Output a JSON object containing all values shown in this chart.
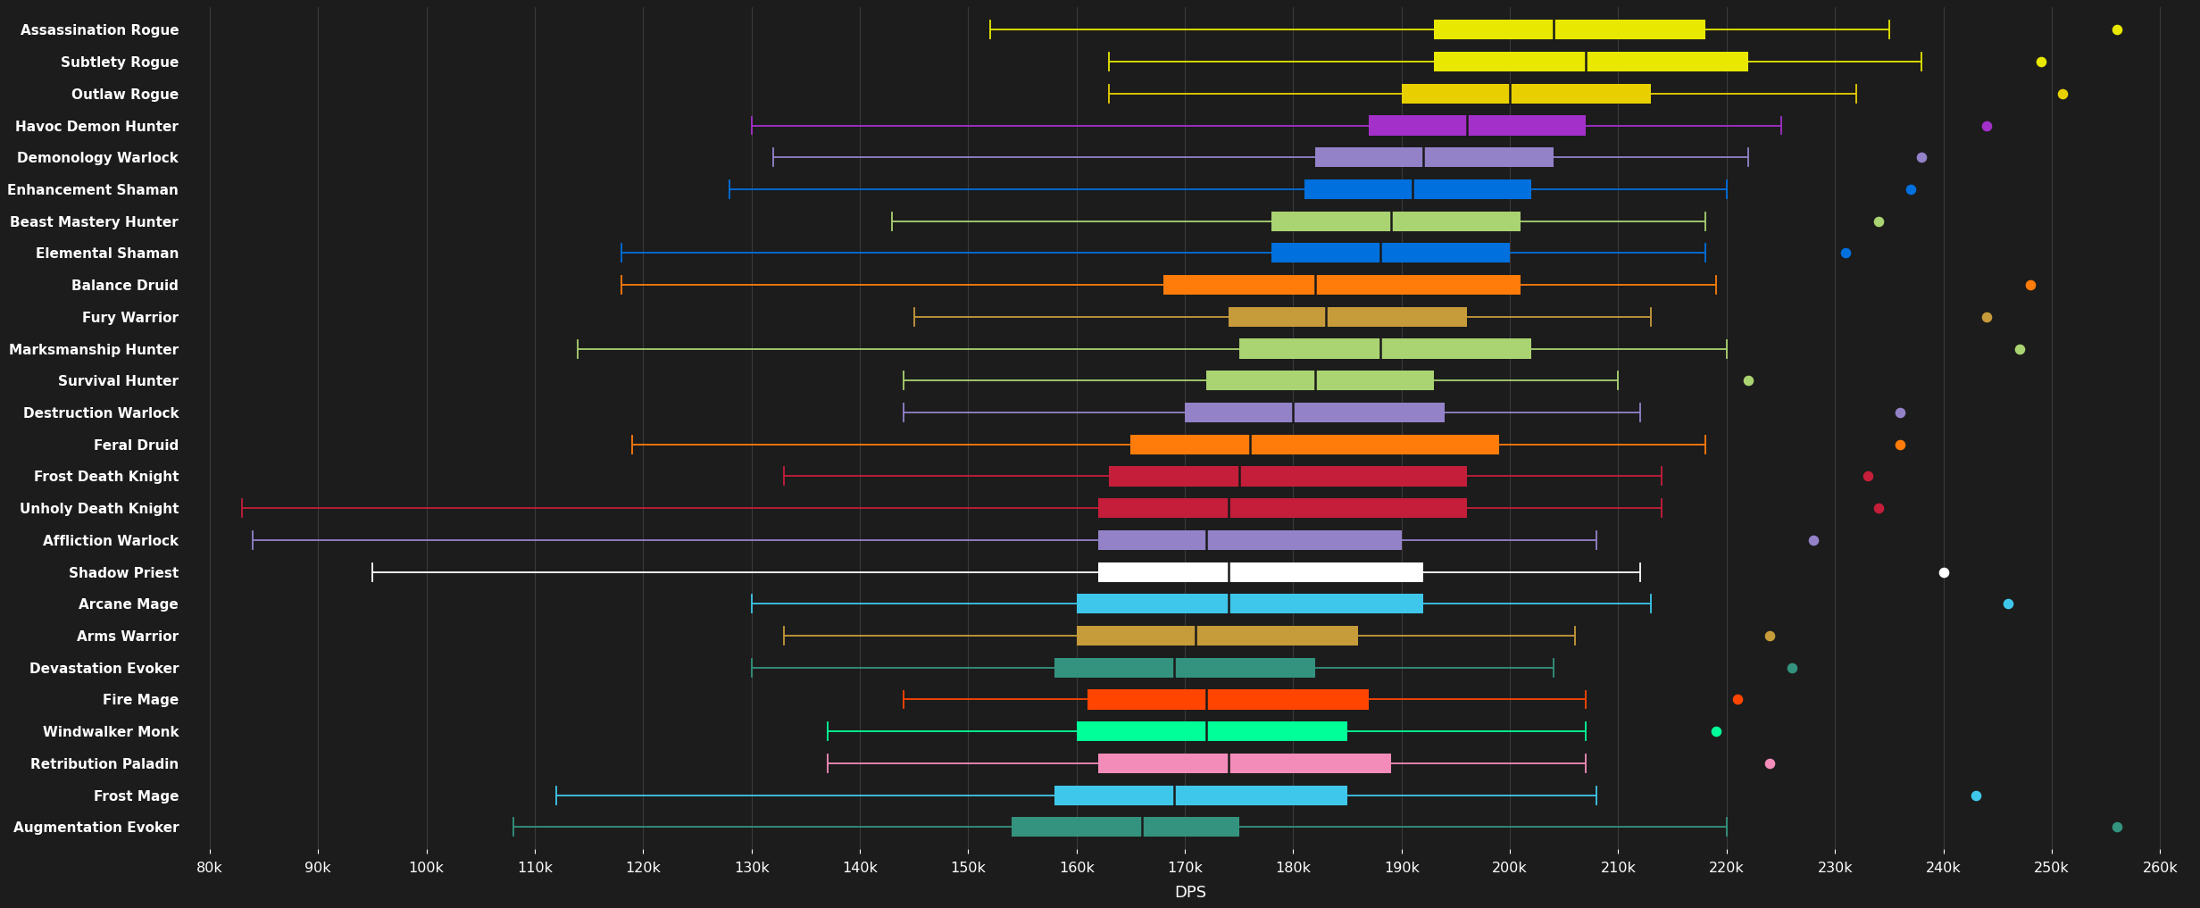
{
  "background_color": "#1c1c1c",
  "text_color": "#ffffff",
  "xlabel": "DPS",
  "xlim": [
    78000,
    263000
  ],
  "xticks": [
    80000,
    90000,
    100000,
    110000,
    120000,
    130000,
    140000,
    150000,
    160000,
    170000,
    180000,
    190000,
    200000,
    210000,
    220000,
    230000,
    240000,
    250000,
    260000
  ],
  "xtick_labels": [
    "80k",
    "90k",
    "100k",
    "110k",
    "120k",
    "130k",
    "140k",
    "150k",
    "160k",
    "170k",
    "180k",
    "190k",
    "200k",
    "210k",
    "220k",
    "230k",
    "240k",
    "250k",
    "260k"
  ],
  "specs": [
    {
      "label": "Assassination Rogue",
      "color": "#e8e800",
      "whisker_low": 152000,
      "q1": 193000,
      "median": 204000,
      "q3": 218000,
      "whisker_high": 235000,
      "dot": 256000
    },
    {
      "label": "Subtlety Rogue",
      "color": "#e8e800",
      "whisker_low": 163000,
      "q1": 193000,
      "median": 207000,
      "q3": 222000,
      "whisker_high": 238000,
      "dot": 249000
    },
    {
      "label": "Outlaw Rogue",
      "color": "#e8d000",
      "whisker_low": 163000,
      "q1": 190000,
      "median": 200000,
      "q3": 213000,
      "whisker_high": 232000,
      "dot": 251000
    },
    {
      "label": "Havoc Demon Hunter",
      "color": "#a330c9",
      "whisker_low": 130000,
      "q1": 187000,
      "median": 196000,
      "q3": 207000,
      "whisker_high": 225000,
      "dot": 244000
    },
    {
      "label": "Demonology Warlock",
      "color": "#9482c9",
      "whisker_low": 132000,
      "q1": 182000,
      "median": 192000,
      "q3": 204000,
      "whisker_high": 222000,
      "dot": 238000
    },
    {
      "label": "Enhancement Shaman",
      "color": "#0070de",
      "whisker_low": 128000,
      "q1": 181000,
      "median": 191000,
      "q3": 202000,
      "whisker_high": 220000,
      "dot": 237000
    },
    {
      "label": "Beast Mastery Hunter",
      "color": "#aad372",
      "whisker_low": 143000,
      "q1": 178000,
      "median": 189000,
      "q3": 201000,
      "whisker_high": 218000,
      "dot": 234000
    },
    {
      "label": "Elemental Shaman",
      "color": "#0070de",
      "whisker_low": 118000,
      "q1": 178000,
      "median": 188000,
      "q3": 200000,
      "whisker_high": 218000,
      "dot": 231000
    },
    {
      "label": "Balance Druid",
      "color": "#ff7c0a",
      "whisker_low": 118000,
      "q1": 168000,
      "median": 182000,
      "q3": 201000,
      "whisker_high": 219000,
      "dot": 248000
    },
    {
      "label": "Fury Warrior",
      "color": "#c69b3a",
      "whisker_low": 145000,
      "q1": 174000,
      "median": 183000,
      "q3": 196000,
      "whisker_high": 213000,
      "dot": 244000
    },
    {
      "label": "Marksmanship Hunter",
      "color": "#aad372",
      "whisker_low": 114000,
      "q1": 175000,
      "median": 188000,
      "q3": 202000,
      "whisker_high": 220000,
      "dot": 247000
    },
    {
      "label": "Survival Hunter",
      "color": "#aad372",
      "whisker_low": 144000,
      "q1": 172000,
      "median": 182000,
      "q3": 193000,
      "whisker_high": 210000,
      "dot": 222000
    },
    {
      "label": "Destruction Warlock",
      "color": "#9482c9",
      "whisker_low": 144000,
      "q1": 170000,
      "median": 180000,
      "q3": 194000,
      "whisker_high": 212000,
      "dot": 236000
    },
    {
      "label": "Feral Druid",
      "color": "#ff7c0a",
      "whisker_low": 119000,
      "q1": 165000,
      "median": 176000,
      "q3": 199000,
      "whisker_high": 218000,
      "dot": 236000
    },
    {
      "label": "Frost Death Knight",
      "color": "#c41e3a",
      "whisker_low": 133000,
      "q1": 163000,
      "median": 175000,
      "q3": 196000,
      "whisker_high": 214000,
      "dot": 233000
    },
    {
      "label": "Unholy Death Knight",
      "color": "#c41e3a",
      "whisker_low": 83000,
      "q1": 162000,
      "median": 174000,
      "q3": 196000,
      "whisker_high": 214000,
      "dot": 234000
    },
    {
      "label": "Affliction Warlock",
      "color": "#9482c9",
      "whisker_low": 84000,
      "q1": 162000,
      "median": 172000,
      "q3": 190000,
      "whisker_high": 208000,
      "dot": 228000
    },
    {
      "label": "Shadow Priest",
      "color": "#ffffff",
      "whisker_low": 95000,
      "q1": 162000,
      "median": 174000,
      "q3": 192000,
      "whisker_high": 212000,
      "dot": 240000
    },
    {
      "label": "Arcane Mage",
      "color": "#3fc7eb",
      "whisker_low": 130000,
      "q1": 160000,
      "median": 174000,
      "q3": 192000,
      "whisker_high": 213000,
      "dot": 246000
    },
    {
      "label": "Arms Warrior",
      "color": "#c69b3a",
      "whisker_low": 133000,
      "q1": 160000,
      "median": 171000,
      "q3": 186000,
      "whisker_high": 206000,
      "dot": 224000
    },
    {
      "label": "Devastation Evoker",
      "color": "#33937f",
      "whisker_low": 130000,
      "q1": 158000,
      "median": 169000,
      "q3": 182000,
      "whisker_high": 204000,
      "dot": 226000
    },
    {
      "label": "Fire Mage",
      "color": "#ff4500",
      "whisker_low": 144000,
      "q1": 161000,
      "median": 172000,
      "q3": 187000,
      "whisker_high": 207000,
      "dot": 221000
    },
    {
      "label": "Windwalker Monk",
      "color": "#00ff98",
      "whisker_low": 137000,
      "q1": 160000,
      "median": 172000,
      "q3": 185000,
      "whisker_high": 207000,
      "dot": 219000
    },
    {
      "label": "Retribution Paladin",
      "color": "#f48cba",
      "whisker_low": 137000,
      "q1": 162000,
      "median": 174000,
      "q3": 189000,
      "whisker_high": 207000,
      "dot": 224000
    },
    {
      "label": "Frost Mage",
      "color": "#3fc7eb",
      "whisker_low": 112000,
      "q1": 158000,
      "median": 169000,
      "q3": 185000,
      "whisker_high": 208000,
      "dot": 243000
    },
    {
      "label": "Augmentation Evoker",
      "color": "#33937f",
      "whisker_low": 108000,
      "q1": 154000,
      "median": 166000,
      "q3": 175000,
      "whisker_high": 220000,
      "dot": 256000
    }
  ]
}
